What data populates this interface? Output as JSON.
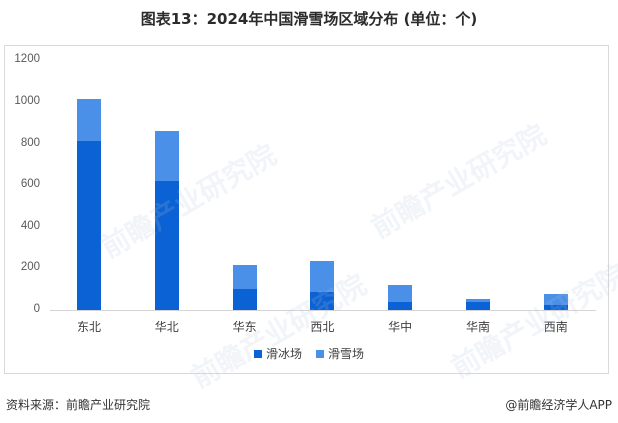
{
  "title": "图表13：2024年中国滑雪场区域分布 (单位：个)",
  "colors": {
    "skating": "#0a62d4",
    "skiing": "#4a8fe8",
    "axis": "#d4d4d4",
    "border": "#d9d9d9"
  },
  "legend": [
    {
      "label": "滑冰场",
      "color": "#0a62d4"
    },
    {
      "label": "滑雪场",
      "color": "#4a8fe8"
    }
  ],
  "footer": {
    "source": "资料来源：前瞻产业研究院",
    "credit": "@前瞻经济学人APP"
  },
  "watermark": "前瞻产业研究院",
  "chart_data": {
    "type": "bar",
    "stacked": true,
    "title": "图表13：2024年中国滑雪场区域分布 (单位：个)",
    "xlabel": "",
    "ylabel": "",
    "ylim": [
      0,
      1200
    ],
    "yticks": [
      0,
      200,
      400,
      600,
      800,
      1000,
      1200
    ],
    "grid": false,
    "legend_position": "bottom",
    "categories": [
      "东北",
      "华北",
      "华东",
      "西北",
      "华中",
      "华南",
      "西南"
    ],
    "series": [
      {
        "name": "滑冰场",
        "values": [
          812,
          620,
          101,
          87,
          38,
          38,
          24
        ]
      },
      {
        "name": "滑雪场",
        "values": [
          202,
          240,
          115,
          149,
          82,
          15,
          53
        ]
      }
    ],
    "totals": [
      1014,
      860,
      216,
      236,
      120,
      53,
      77
    ]
  }
}
